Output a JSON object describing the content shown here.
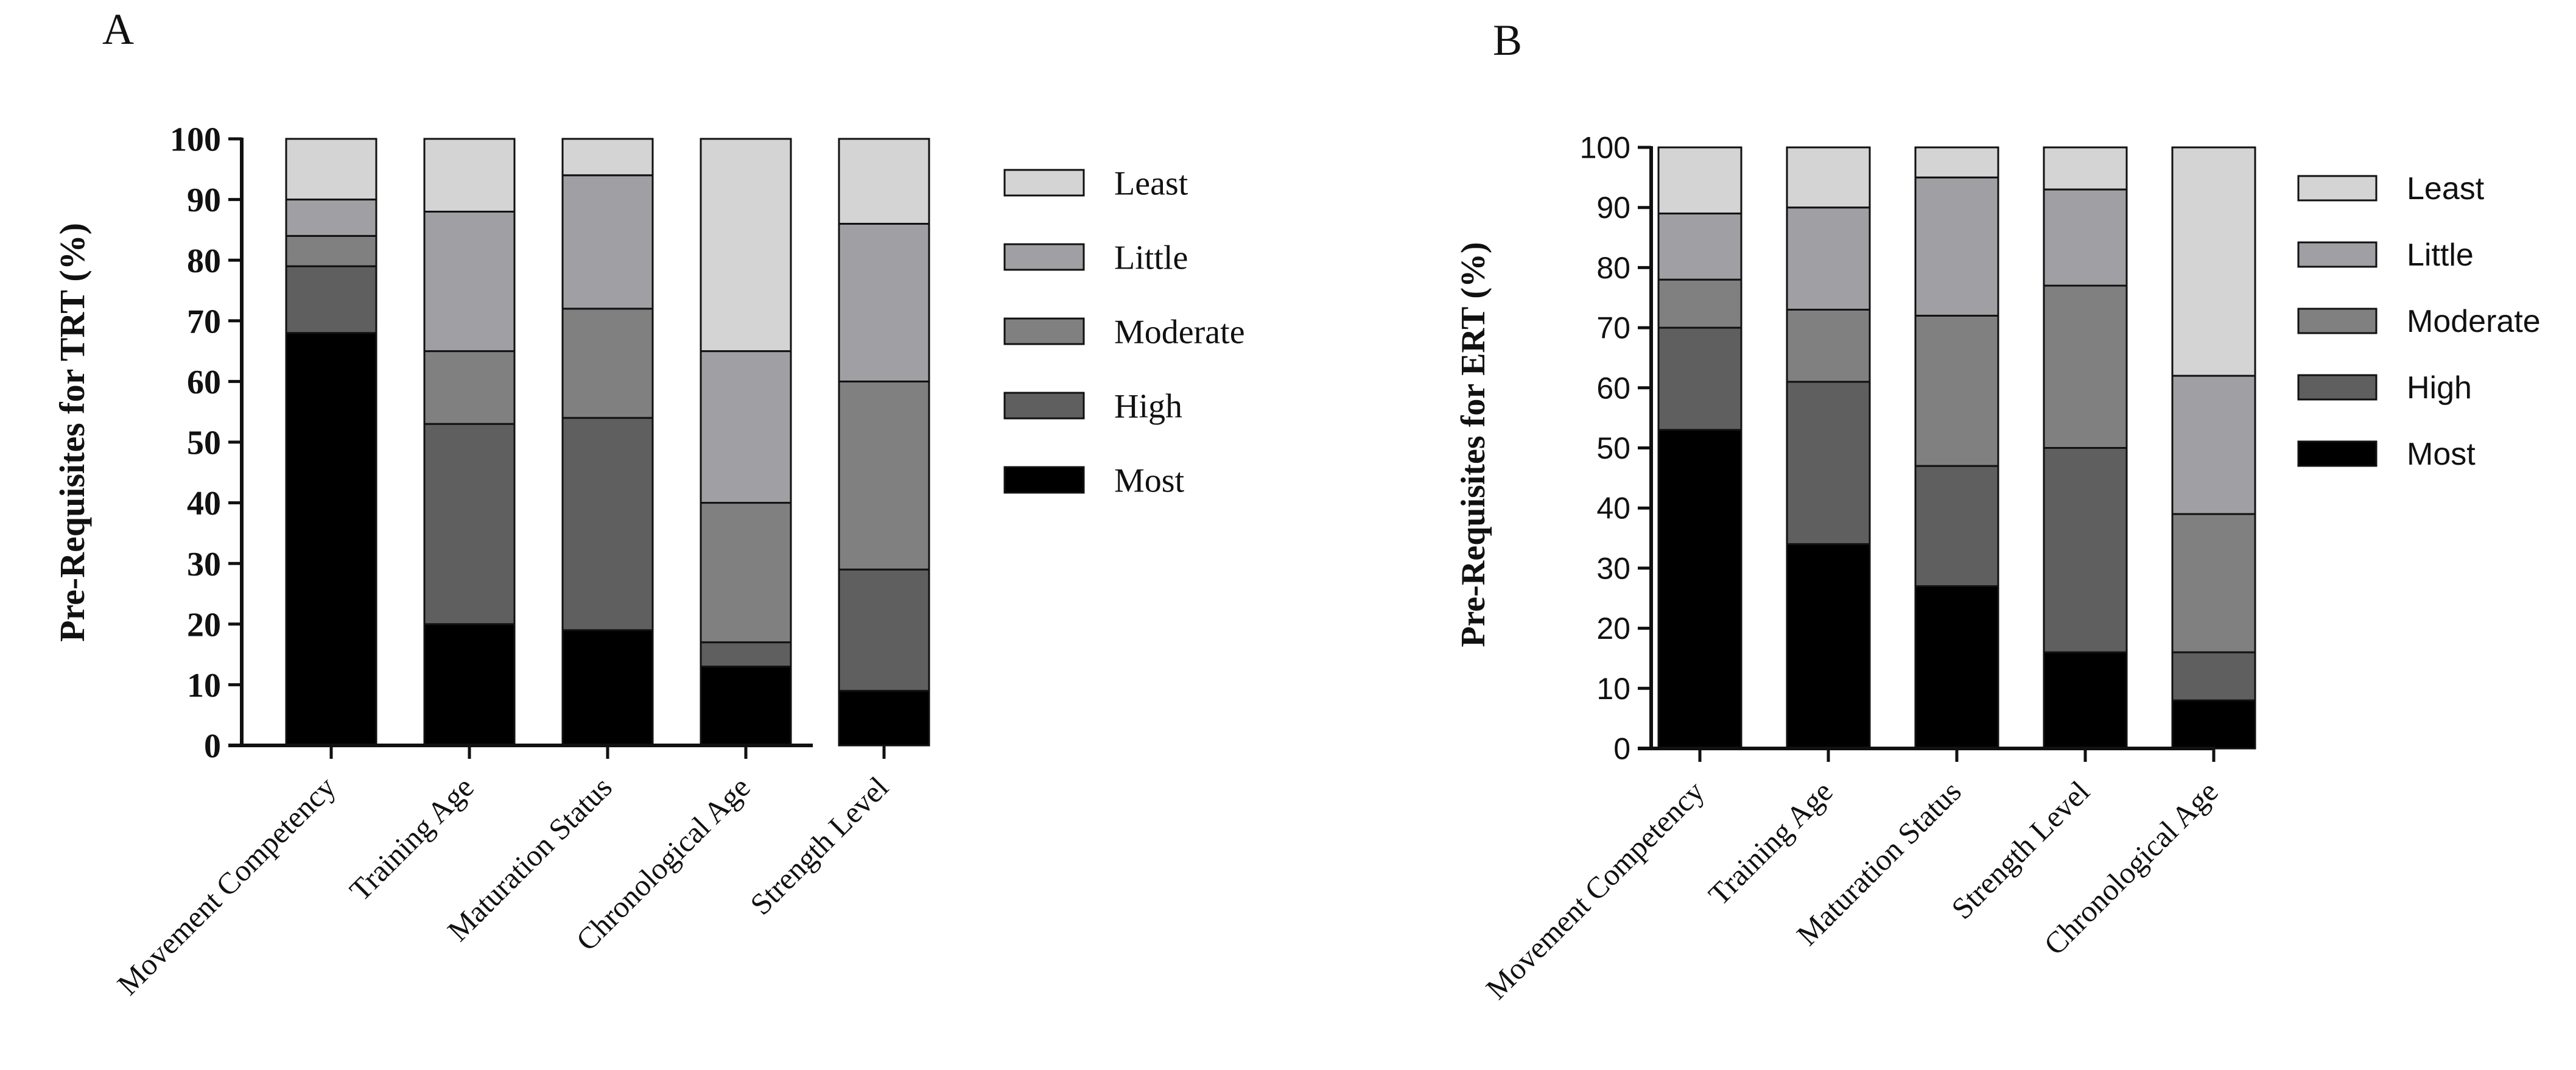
{
  "figure": {
    "panels": [
      "A",
      "B"
    ]
  },
  "chart_data": [
    {
      "panel": "A",
      "type": "bar",
      "stacked": true,
      "title": "",
      "xlabel": "",
      "ylabel": "Pre-Requisites for TRT (%)",
      "ylim": [
        0,
        100
      ],
      "yticks": [
        0,
        10,
        20,
        30,
        40,
        50,
        60,
        70,
        80,
        90,
        100
      ],
      "categories": [
        "Movement Competency",
        "Training Age",
        "Maturation Status",
        "Chronological Age",
        "Strength Level"
      ],
      "legend_position": "right",
      "series": [
        {
          "name": "Most",
          "color": "#000000",
          "values": [
            68,
            20,
            19,
            13,
            9
          ]
        },
        {
          "name": "High",
          "color": "#5f5f5f",
          "values": [
            11,
            33,
            35,
            4,
            20
          ]
        },
        {
          "name": "Moderate",
          "color": "#808080",
          "values": [
            5,
            12,
            18,
            23,
            31
          ]
        },
        {
          "name": "Little",
          "color": "#a0a0a4",
          "values": [
            6,
            23,
            22,
            25,
            26
          ]
        },
        {
          "name": "Least",
          "color": "#d4d4d4",
          "values": [
            10,
            12,
            6,
            35,
            14
          ]
        }
      ]
    },
    {
      "panel": "B",
      "type": "bar",
      "stacked": true,
      "title": "",
      "xlabel": "",
      "ylabel": "Pre-Requisites for ERT (%)",
      "ylim": [
        0,
        100
      ],
      "yticks": [
        0,
        10,
        20,
        30,
        40,
        50,
        60,
        70,
        80,
        90,
        100
      ],
      "categories": [
        "Movement Competency",
        "Training Age",
        "Maturation Status",
        "Strength Level",
        "Chronological Age"
      ],
      "legend_position": "right",
      "series": [
        {
          "name": "Most",
          "color": "#000000",
          "values": [
            53,
            34,
            27,
            16,
            8
          ]
        },
        {
          "name": "High",
          "color": "#5f5f5f",
          "values": [
            17,
            27,
            20,
            34,
            8
          ]
        },
        {
          "name": "Moderate",
          "color": "#808080",
          "values": [
            8,
            12,
            25,
            27,
            23
          ]
        },
        {
          "name": "Little",
          "color": "#a0a0a4",
          "values": [
            11,
            17,
            23,
            16,
            23
          ]
        },
        {
          "name": "Least",
          "color": "#d4d4d4",
          "values": [
            11,
            10,
            5,
            7,
            38
          ]
        }
      ]
    }
  ]
}
